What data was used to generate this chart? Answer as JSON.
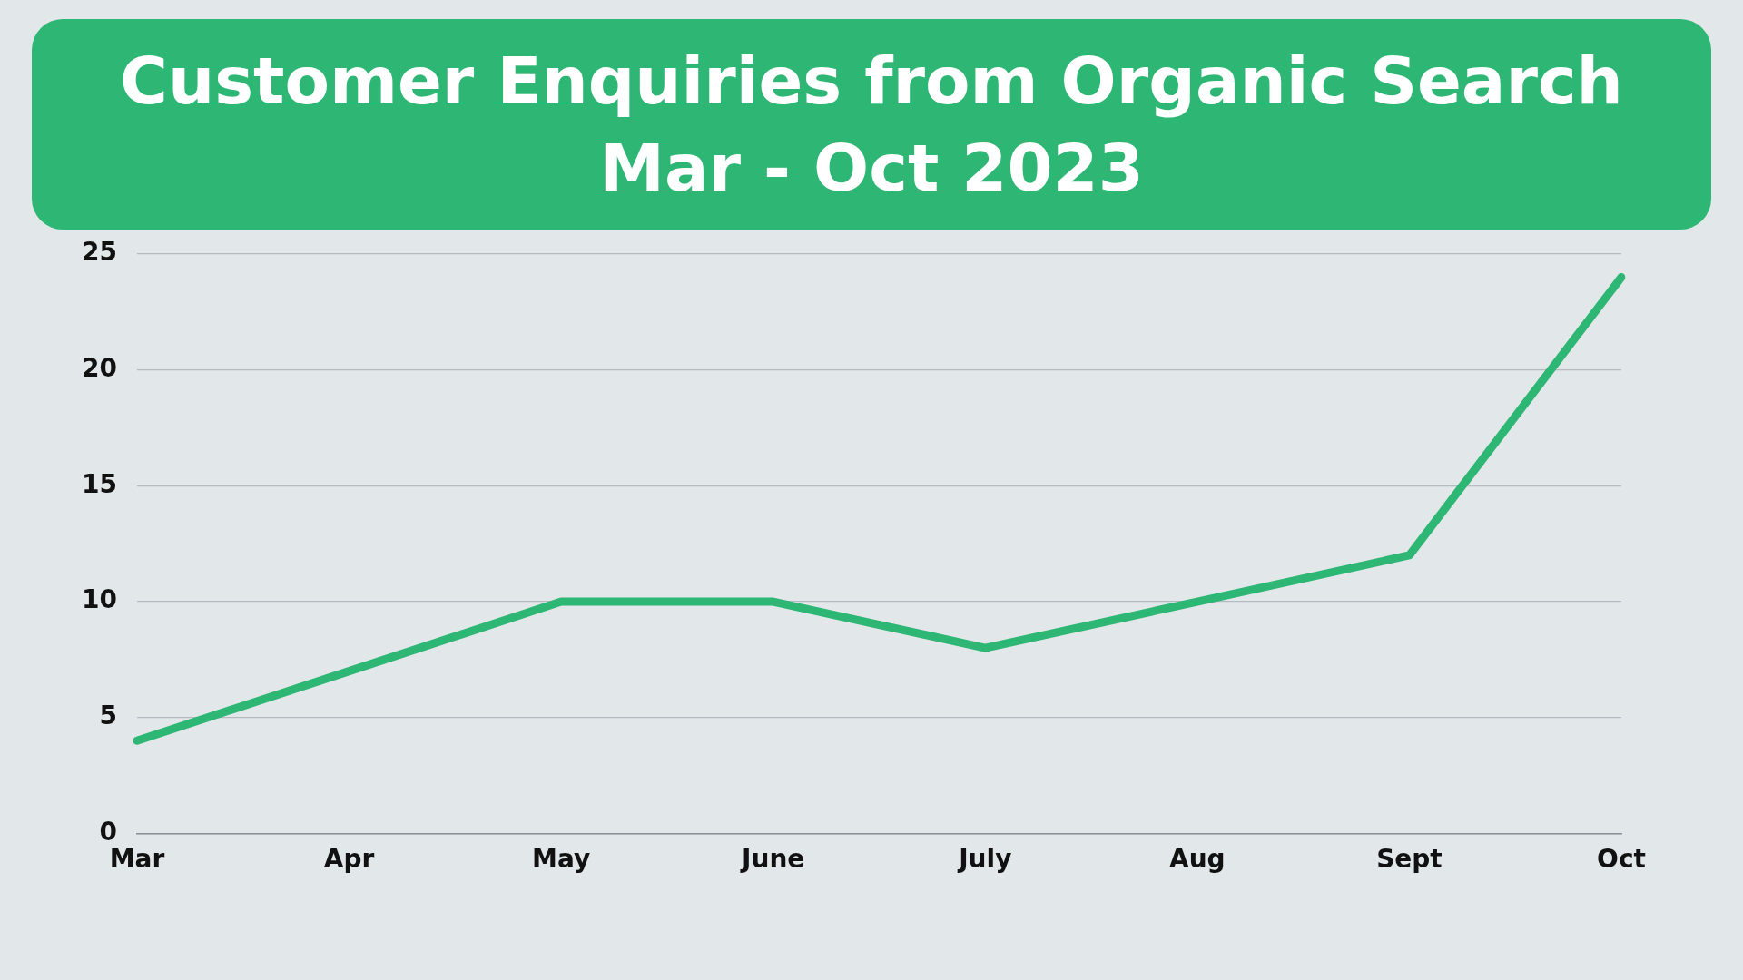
{
  "chart_data": {
    "type": "line",
    "title": "Customer Enquiries from Organic Search",
    "subtitle": "Mar - Oct 2023",
    "categories": [
      "Mar",
      "Apr",
      "May",
      "June",
      "July",
      "Aug",
      "Sept",
      "Oct"
    ],
    "series": [
      {
        "color": "#2db674",
        "values": [
          4,
          7,
          10,
          10,
          8,
          10,
          12,
          24
        ]
      }
    ],
    "ylim": [
      0,
      25
    ],
    "yticks": [
      0,
      5,
      10,
      15,
      20,
      25
    ],
    "grid": "y",
    "legend": false,
    "marker": "none",
    "line_style": "solid"
  }
}
